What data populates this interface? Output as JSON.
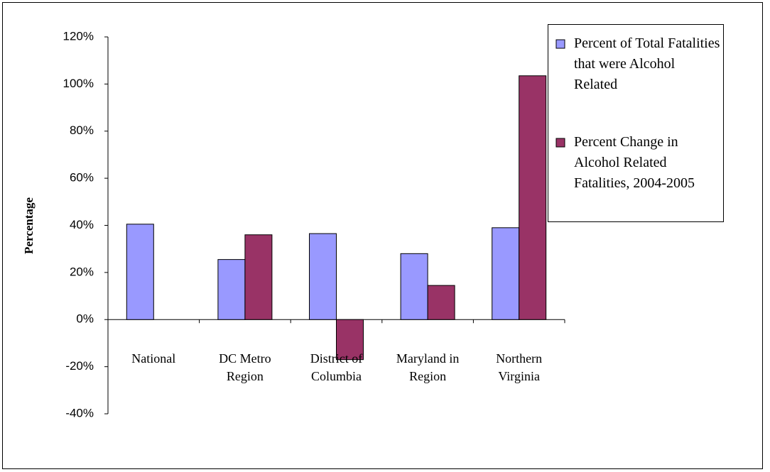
{
  "chart_data": {
    "type": "bar",
    "y_label": "Percentage",
    "categories": [
      "National",
      "DC Metro Region",
      "District of Columbia",
      "Maryland in Region",
      "Northern Virginia"
    ],
    "series": [
      {
        "name": "Percent of Total Fatalities that were Alcohol Related",
        "color": "#9999ff",
        "values": [
          40.5,
          25.5,
          36.5,
          28,
          39
        ]
      },
      {
        "name": "Percent Change in Alcohol Related Fatalities, 2004-2005",
        "color": "#993366",
        "values": [
          null,
          36,
          -17,
          14.5,
          103.5
        ]
      }
    ],
    "ylim": [
      -40,
      120
    ],
    "yticks": [
      {
        "value": -40,
        "label": "-40%"
      },
      {
        "value": -20,
        "label": "-20%"
      },
      {
        "value": 0,
        "label": "0%"
      },
      {
        "value": 20,
        "label": "20%"
      },
      {
        "value": 40,
        "label": "40%"
      },
      {
        "value": 60,
        "label": "60%"
      },
      {
        "value": 80,
        "label": "80%"
      },
      {
        "value": 100,
        "label": "100%"
      },
      {
        "value": 120,
        "label": "120%"
      }
    ],
    "grid": false,
    "legend": "right"
  }
}
